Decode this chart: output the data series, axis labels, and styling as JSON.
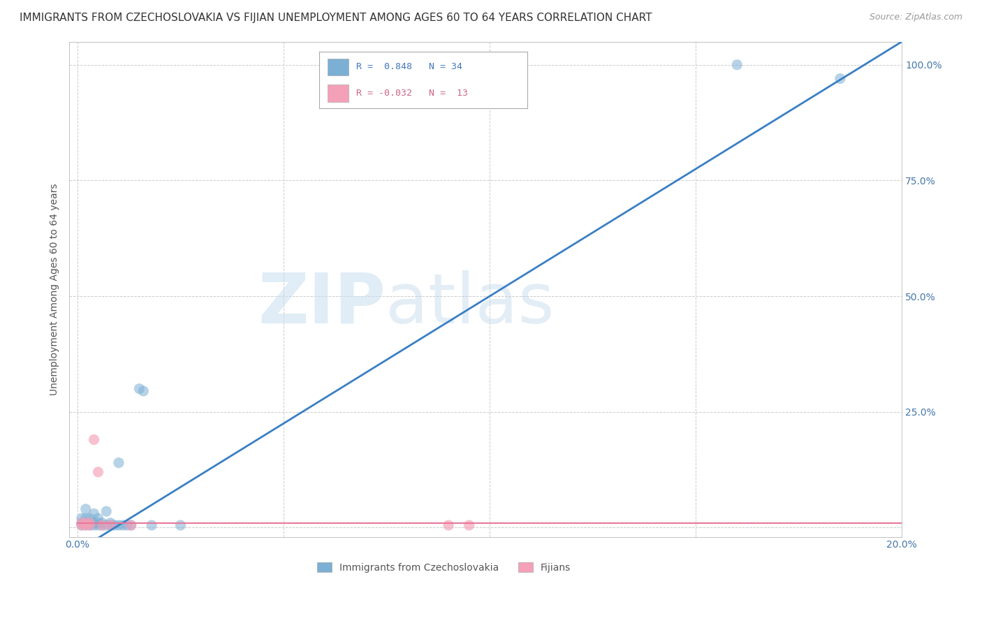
{
  "title": "IMMIGRANTS FROM CZECHOSLOVAKIA VS FIJIAN UNEMPLOYMENT AMONG AGES 60 TO 64 YEARS CORRELATION CHART",
  "source": "Source: ZipAtlas.com",
  "ylabel_label": "Unemployment Among Ages 60 to 64 years",
  "blue_scatter_x": [
    0.001,
    0.001,
    0.001,
    0.002,
    0.002,
    0.002,
    0.002,
    0.003,
    0.003,
    0.003,
    0.004,
    0.004,
    0.004,
    0.005,
    0.005,
    0.005,
    0.006,
    0.006,
    0.007,
    0.007,
    0.008,
    0.008,
    0.009,
    0.01,
    0.01,
    0.011,
    0.012,
    0.013,
    0.015,
    0.016,
    0.018,
    0.025,
    0.16,
    0.185
  ],
  "blue_scatter_y": [
    0.005,
    0.01,
    0.02,
    0.005,
    0.01,
    0.02,
    0.04,
    0.005,
    0.01,
    0.02,
    0.005,
    0.01,
    0.03,
    0.005,
    0.01,
    0.02,
    0.005,
    0.01,
    0.005,
    0.035,
    0.005,
    0.01,
    0.005,
    0.005,
    0.14,
    0.005,
    0.005,
    0.005,
    0.3,
    0.295,
    0.005,
    0.005,
    1.0,
    0.97
  ],
  "pink_scatter_x": [
    0.001,
    0.001,
    0.002,
    0.002,
    0.003,
    0.003,
    0.004,
    0.005,
    0.006,
    0.008,
    0.013,
    0.09,
    0.095
  ],
  "pink_scatter_y": [
    0.005,
    0.01,
    0.005,
    0.01,
    0.005,
    0.01,
    0.19,
    0.12,
    0.005,
    0.005,
    0.005,
    0.005,
    0.005
  ],
  "blue_line_x": [
    0.0,
    0.2
  ],
  "blue_line_y": [
    -0.05,
    1.05
  ],
  "pink_line_x": [
    0.0,
    0.2
  ],
  "pink_line_y": [
    0.01,
    0.01
  ],
  "blue_color": "#7bafd4",
  "pink_color": "#f4a0b8",
  "blue_line_color": "#3a7fc4",
  "pink_line_color": "#e8789a",
  "watermark_zip": "ZIP",
  "watermark_atlas": "atlas",
  "bg_color": "#ffffff",
  "title_fontsize": 11,
  "source_fontsize": 9,
  "ylabel_fontsize": 10,
  "xlim": [
    -0.002,
    0.2
  ],
  "ylim": [
    -0.02,
    1.05
  ]
}
